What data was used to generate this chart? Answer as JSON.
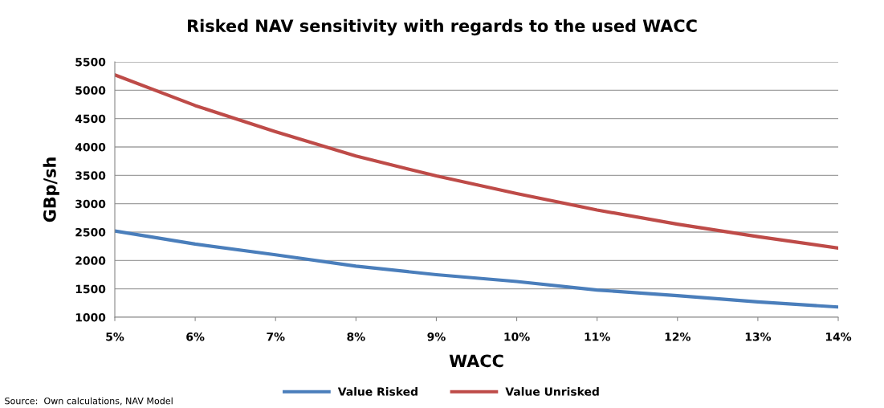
{
  "chart_data": {
    "type": "line",
    "title": "Risked NAV sensitivity with regards to the used WACC",
    "xlabel": "WACC",
    "ylabel": "GBp/sh",
    "categories": [
      "5%",
      "6%",
      "7%",
      "8%",
      "9%",
      "10%",
      "11%",
      "12%",
      "13%",
      "14%"
    ],
    "series": [
      {
        "name": "Value Risked",
        "color": "#4a7ebb",
        "values": [
          2520,
          2290,
          2100,
          1900,
          1750,
          1630,
          1480,
          1380,
          1270,
          1180
        ]
      },
      {
        "name": "Value Unrisked",
        "color": "#be4b48",
        "values": [
          5270,
          4730,
          4270,
          3840,
          3490,
          3180,
          2890,
          2640,
          2420,
          2220
        ]
      }
    ],
    "ylim": [
      1000,
      5500
    ],
    "yticks": [
      1000,
      1500,
      2000,
      2500,
      3000,
      3500,
      4000,
      4500,
      5000,
      5500
    ],
    "grid": "y",
    "legend": "bottom",
    "marker": "none",
    "line_style": "solid",
    "annotations": [
      "Source:  Own calculations, NAV Model"
    ]
  }
}
